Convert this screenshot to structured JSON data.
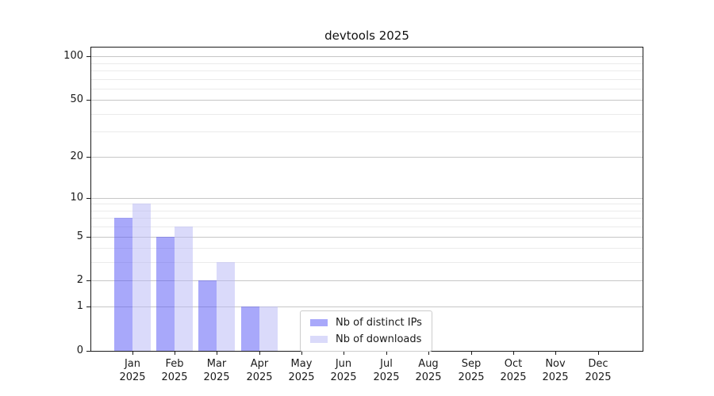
{
  "window": {
    "title": "devtools 2025"
  },
  "chart_data": {
    "type": "bar",
    "title": "devtools 2025",
    "categories": [
      "Jan",
      "Feb",
      "Mar",
      "Apr",
      "May",
      "Jun",
      "Jul",
      "Aug",
      "Sep",
      "Oct",
      "Nov",
      "Dec"
    ],
    "year_label": "2025",
    "series": [
      {
        "name": "Nb of distinct IPs",
        "color": "rgba(81,81,245,0.5)",
        "color_hex_on_white": "#a8a8fa",
        "values": [
          7,
          5,
          2,
          1,
          0,
          0,
          0,
          0,
          0,
          0,
          0,
          0
        ]
      },
      {
        "name": "Nb of downloads",
        "color": "rgba(181,181,245,0.5)",
        "color_hex_on_white": "#dadafa",
        "values": [
          9,
          6,
          3,
          1,
          0,
          0,
          0,
          0,
          0,
          0,
          0,
          0
        ]
      }
    ],
    "xlabel": "",
    "ylabel": "",
    "y_axis": {
      "scale": "log1p",
      "ylim": [
        0,
        115
      ],
      "major_ticks": [
        0,
        1,
        2,
        5,
        10,
        20,
        50,
        100
      ],
      "minor_ticks": [
        3,
        4,
        6,
        7,
        8,
        9,
        30,
        40,
        60,
        70,
        80,
        90
      ],
      "grid": "on"
    },
    "legend": {
      "position": "lower center",
      "border_color": "#cccccc"
    },
    "colors": {
      "axis": "#1a1a1a",
      "grid_major": "#c6c6c6",
      "grid_minor": "#ebebeb",
      "background": "#ffffff"
    }
  }
}
